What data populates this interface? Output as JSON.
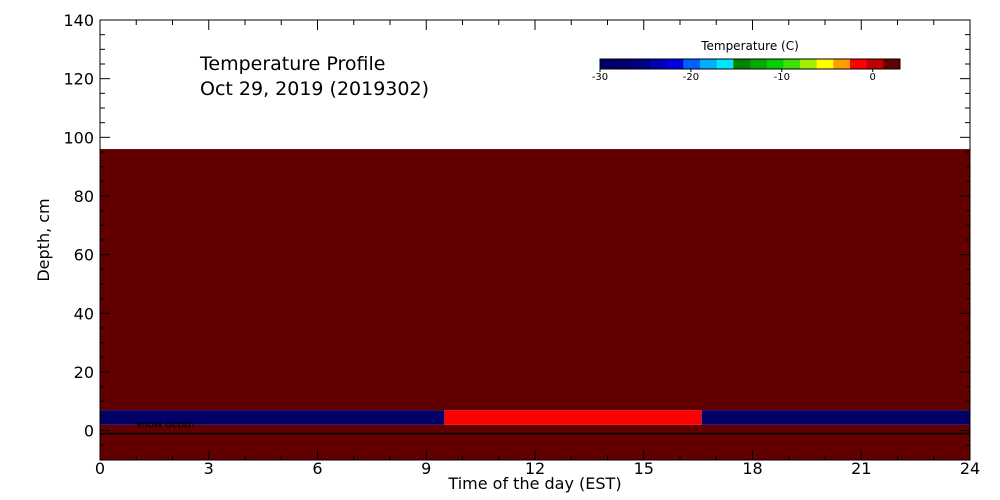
{
  "chart_data": {
    "type": "heatmap",
    "title": "Temperature Profile",
    "subtitle": "Oct 29, 2019 (2019302)",
    "xlabel": "Time of the day (EST)",
    "ylabel": "Depth, cm",
    "xlim": [
      0,
      24
    ],
    "ylim": [
      -10,
      140
    ],
    "xticks": [
      0,
      3,
      6,
      9,
      12,
      15,
      18,
      21,
      24
    ],
    "yticks": [
      0,
      20,
      40,
      60,
      80,
      100,
      120,
      140
    ],
    "colorbar": {
      "title": "Temperature (C)",
      "range": [
        -30,
        3
      ],
      "ticks": [
        -30,
        -20,
        -10,
        0
      ],
      "tick_labels": [
        "-30",
        "-20",
        "-10",
        "0"
      ],
      "colors": [
        "#000066",
        "#00006e",
        "#000080",
        "#0000b4",
        "#0000e0",
        "#0060ff",
        "#00b0ff",
        "#00e8ff",
        "#008000",
        "#00a800",
        "#00d000",
        "#40e000",
        "#a0f000",
        "#ffff00",
        "#ffa000",
        "#ff0000",
        "#c00000",
        "#620000"
      ]
    },
    "cells": [
      {
        "x0": 0,
        "x1": 24,
        "y0": -10,
        "y1": 2,
        "color": "#620000"
      },
      {
        "x0": 0,
        "x1": 9.5,
        "y0": 2,
        "y1": 7,
        "color": "#000066"
      },
      {
        "x0": 9.5,
        "x1": 16.6,
        "y0": 2,
        "y1": 7,
        "color": "#ff0000"
      },
      {
        "x0": 16.6,
        "x1": 24,
        "y0": 2,
        "y1": 7,
        "color": "#000066"
      },
      {
        "x0": 0,
        "x1": 24,
        "y0": 7,
        "y1": 96,
        "color": "#620000"
      }
    ],
    "lines": [
      {
        "name": "snow depth",
        "y": -1,
        "x0": 0,
        "x1": 24,
        "label": "snow depth",
        "label_x": 1
      }
    ]
  }
}
